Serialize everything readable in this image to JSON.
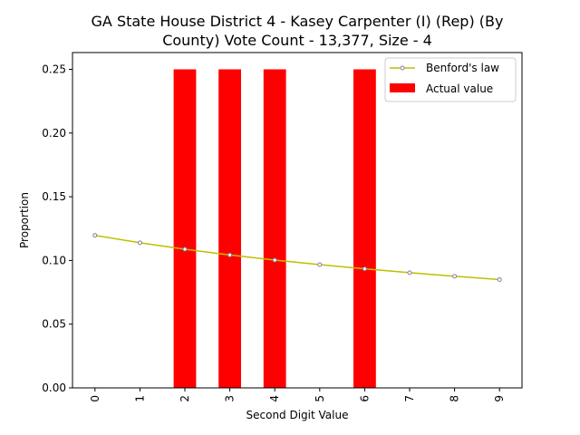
{
  "chart_data": {
    "type": "bar",
    "title_line1": "GA State House District 4 - Kasey Carpenter (I) (Rep) (By",
    "title_line2": "County) Vote Count - 13,377, Size - 4",
    "xlabel": "Second Digit Value",
    "ylabel": "Proportion",
    "categories": [
      "0",
      "1",
      "2",
      "3",
      "4",
      "5",
      "6",
      "7",
      "8",
      "9"
    ],
    "ylim": [
      0,
      0.25
    ],
    "yticks": [
      "0.00",
      "0.05",
      "0.10",
      "0.15",
      "0.20",
      "0.25"
    ],
    "series": [
      {
        "name": "Actual value",
        "kind": "bar",
        "color": "#ff0000",
        "values": [
          0,
          0,
          0.25,
          0.25,
          0.25,
          0,
          0.25,
          0,
          0,
          0
        ]
      },
      {
        "name": "Benford's law",
        "kind": "line",
        "color": "#bfbf00",
        "marker_color": "#8080a0",
        "values": [
          0.1197,
          0.1139,
          0.1088,
          0.1043,
          0.1003,
          0.0967,
          0.0934,
          0.0904,
          0.0876,
          0.085
        ]
      }
    ],
    "legend_position": "top-right",
    "grid": false
  }
}
